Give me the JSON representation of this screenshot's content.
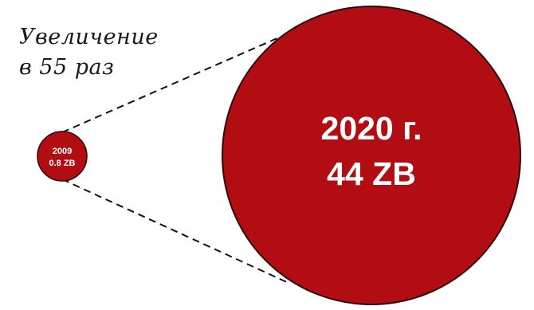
{
  "caption": {
    "line1": "Увеличение",
    "line2": "в 55 раз"
  },
  "small_circle": {
    "year": "2009",
    "value": "0.8 ZB"
  },
  "big_circle": {
    "year": "2020 г.",
    "value": "44 ZB"
  },
  "colors": {
    "circle_fill": "#b30d14",
    "circle_stroke": "#2a0a0a",
    "line": "#111111"
  }
}
